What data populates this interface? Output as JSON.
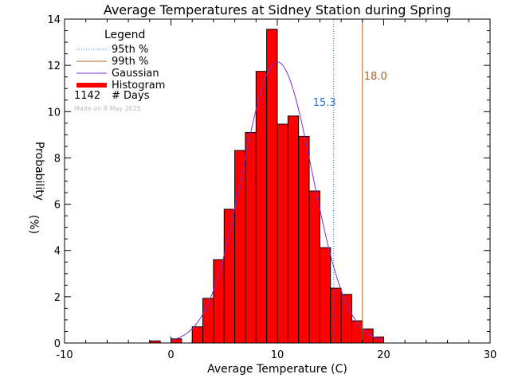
{
  "chart_data": {
    "type": "bar",
    "title": "Average Temperatures at Sidney Station during Spring",
    "xlabel": "Average Temperature (C)",
    "ylabel": "Probability",
    "ylabel_unit": "(%)",
    "xlim": [
      -10,
      30
    ],
    "ylim": [
      0,
      14
    ],
    "xticks": [
      -10,
      0,
      10,
      20,
      30
    ],
    "yticks": [
      0,
      2,
      4,
      6,
      8,
      10,
      12,
      14
    ],
    "bin_width": 1,
    "bins": [
      {
        "x0": -2,
        "value": 0.09
      },
      {
        "x0": 0,
        "value": 0.18
      },
      {
        "x0": 2,
        "value": 0.7
      },
      {
        "x0": 3,
        "value": 1.93
      },
      {
        "x0": 4,
        "value": 3.6
      },
      {
        "x0": 5,
        "value": 5.78
      },
      {
        "x0": 6,
        "value": 8.32
      },
      {
        "x0": 7,
        "value": 9.1
      },
      {
        "x0": 8,
        "value": 11.74
      },
      {
        "x0": 9,
        "value": 13.56
      },
      {
        "x0": 10,
        "value": 9.46
      },
      {
        "x0": 11,
        "value": 9.81
      },
      {
        "x0": 12,
        "value": 8.93
      },
      {
        "x0": 13,
        "value": 6.57
      },
      {
        "x0": 14,
        "value": 4.12
      },
      {
        "x0": 15,
        "value": 2.37
      },
      {
        "x0": 16,
        "value": 2.1
      },
      {
        "x0": 17,
        "value": 0.96
      },
      {
        "x0": 18,
        "value": 0.61
      },
      {
        "x0": 19,
        "value": 0.26
      }
    ],
    "gaussian": {
      "mean": 10.0,
      "sigma": 3.28,
      "peak": 12.15
    },
    "percentiles": [
      {
        "name": "95th %",
        "value": 15.3,
        "label": "15.3",
        "color": "#1f77d4",
        "style": "dotted"
      },
      {
        "name": "99th %",
        "value": 18.0,
        "label": "18.0",
        "color": "#b06020",
        "style": "solid"
      }
    ],
    "colors": {
      "histogram": "#ff0000",
      "gaussian": "#7b2fd6",
      "axis": "#000000"
    },
    "legend": {
      "title": "Legend",
      "placement": "top-left",
      "entries": [
        {
          "label": "95th %",
          "color": "#1f77d4",
          "style": "dotted"
        },
        {
          "label": "99th %",
          "color": "#b06020",
          "style": "solid"
        },
        {
          "label": "Gaussian",
          "color": "#7b2fd6",
          "style": "line"
        },
        {
          "label": "Histogram",
          "color": "#ff0000",
          "style": "thick"
        }
      ],
      "count": "1142",
      "count_label": "# Days"
    },
    "watermark": "Made on 8 May 2025"
  }
}
